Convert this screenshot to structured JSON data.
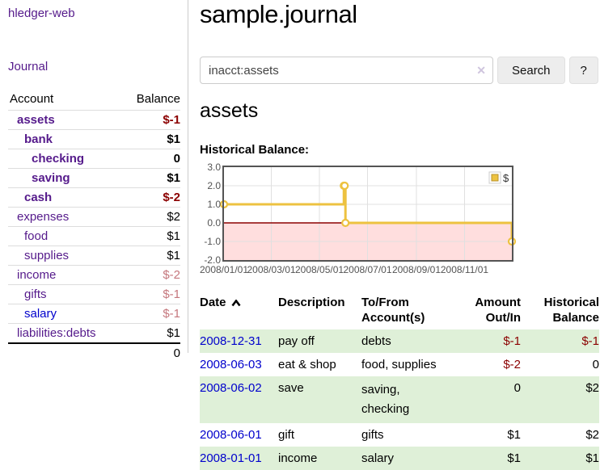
{
  "colors": {
    "link_purple": "#551a8b",
    "link_blue": "#0000cc",
    "negative_strong": "#8b0000",
    "negative_soft": "#c5777d",
    "row_highlight_green": "#dff0d8",
    "chart_line": "#edc240",
    "chart_marker_fill": "#ffffff",
    "chart_negative_fill": "#ffdede",
    "chart_zero_line": "#8b0000",
    "chart_border": "#545454",
    "chart_grid": "#e0e0e0"
  },
  "sidebar": {
    "brand": "hledger-web",
    "journal_link": "Journal",
    "accounts_table": {
      "headers": {
        "account": "Account",
        "balance": "Balance"
      },
      "rows": [
        {
          "name": "assets",
          "depth": 1,
          "balance": "$-1",
          "bold": true,
          "negative": "strong"
        },
        {
          "name": "bank",
          "depth": 2,
          "balance": "$1",
          "bold": true
        },
        {
          "name": "checking",
          "depth": 3,
          "balance": "0",
          "bold": true
        },
        {
          "name": "saving",
          "depth": 3,
          "balance": "$1",
          "bold": true
        },
        {
          "name": "cash",
          "depth": 2,
          "balance": "$-2",
          "bold": true,
          "negative": "strong"
        },
        {
          "name": "expenses",
          "depth": 1,
          "balance": "$2"
        },
        {
          "name": "food",
          "depth": 2,
          "balance": "$1"
        },
        {
          "name": "supplies",
          "depth": 2,
          "balance": "$1"
        },
        {
          "name": "income",
          "depth": 1,
          "balance": "$-2",
          "negative": "soft"
        },
        {
          "name": "gifts",
          "depth": 2,
          "balance": "$-1",
          "negative": "soft"
        },
        {
          "name": "salary",
          "depth": 2,
          "balance": "$-1",
          "negative": "soft",
          "link_color": "blue"
        },
        {
          "name": "liabilities:debts",
          "depth": 1,
          "balance": "$1"
        }
      ],
      "total": "0"
    }
  },
  "main": {
    "title": "sample.journal",
    "search": {
      "value": "inacct:assets",
      "clear_icon": "✕",
      "search_button": "Search",
      "help_button": "?"
    },
    "account_heading": "assets",
    "chart_heading": "Historical Balance:"
  },
  "chart_data": {
    "type": "line",
    "line_style": "step-after",
    "title": "Historical Balance",
    "series": [
      {
        "name": "$",
        "points": [
          {
            "date": "2008-01-01",
            "value": 1
          },
          {
            "date": "2008-06-01",
            "value": 2
          },
          {
            "date": "2008-06-02",
            "value": 2
          },
          {
            "date": "2008-06-03",
            "value": 0
          },
          {
            "date": "2008-12-31",
            "value": -1
          }
        ]
      }
    ],
    "xlim": [
      "2008-01-01",
      "2008-12-31"
    ],
    "ylim": [
      -2,
      3
    ],
    "x_ticks": [
      {
        "date": "2008-01-01",
        "label": "2008/01/01"
      },
      {
        "date": "2008-03-01",
        "label": "2008/03/01"
      },
      {
        "date": "2008-05-01",
        "label": "2008/05/01"
      },
      {
        "date": "2008-07-01",
        "label": "2008/07/01"
      },
      {
        "date": "2008-09-01",
        "label": "2008/09/01"
      },
      {
        "date": "2008-11-01",
        "label": "2008/11/01"
      }
    ],
    "y_ticks": [
      {
        "value": 3,
        "label": "3.0"
      },
      {
        "value": 2,
        "label": "2.0"
      },
      {
        "value": 1,
        "label": "1.0"
      },
      {
        "value": 0,
        "label": "0.0"
      },
      {
        "value": -1,
        "label": "-1.0"
      },
      {
        "value": -2,
        "label": "-2.0"
      }
    ],
    "legend": {
      "label": "$",
      "position": "top-right"
    },
    "negative_region_below": 0,
    "grid": true
  },
  "register_table": {
    "headers": {
      "date": "Date",
      "description": "Description",
      "accounts": "To/From\nAccount(s)",
      "amount": "Amount\nOut/In",
      "balance": "Historical\nBalance"
    },
    "rows": [
      {
        "date": "2008-12-31",
        "description": "pay off",
        "accounts": "debts",
        "amount": "$-1",
        "amount_negative": true,
        "balance": "$-1",
        "balance_negative": true,
        "highlight": true
      },
      {
        "date": "2008-06-03",
        "description": "eat & shop",
        "accounts": "food, supplies",
        "amount": "$-2",
        "amount_negative": true,
        "balance": "0",
        "balance_negative": false,
        "highlight": false
      },
      {
        "date": "2008-06-02",
        "description": "save",
        "accounts": "saving,\nchecking",
        "amount": "0",
        "amount_negative": false,
        "balance": "$2",
        "balance_negative": false,
        "highlight": true
      },
      {
        "date": "2008-06-01",
        "description": "gift",
        "accounts": "gifts",
        "amount": "$1",
        "amount_negative": false,
        "balance": "$2",
        "balance_negative": false,
        "highlight": false
      },
      {
        "date": "2008-01-01",
        "description": "income",
        "accounts": "salary",
        "amount": "$1",
        "amount_negative": false,
        "balance": "$1",
        "balance_negative": false,
        "highlight": true
      }
    ]
  }
}
